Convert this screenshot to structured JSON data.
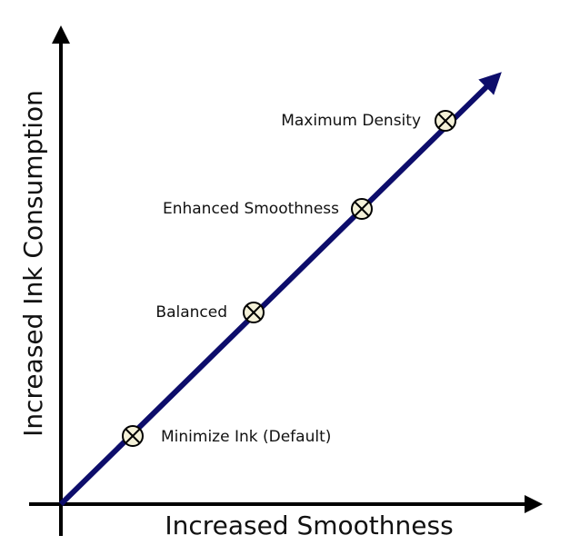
{
  "x_axis": {
    "title": "Increased Smoothness"
  },
  "y_axis": {
    "title": "Increased Ink Consumption"
  },
  "nodes": [
    {
      "label": "Minimize Ink (Default)"
    },
    {
      "label": "Balanced"
    },
    {
      "label": "Enhanced Smoothness"
    },
    {
      "label": "Maximum Density"
    }
  ]
}
